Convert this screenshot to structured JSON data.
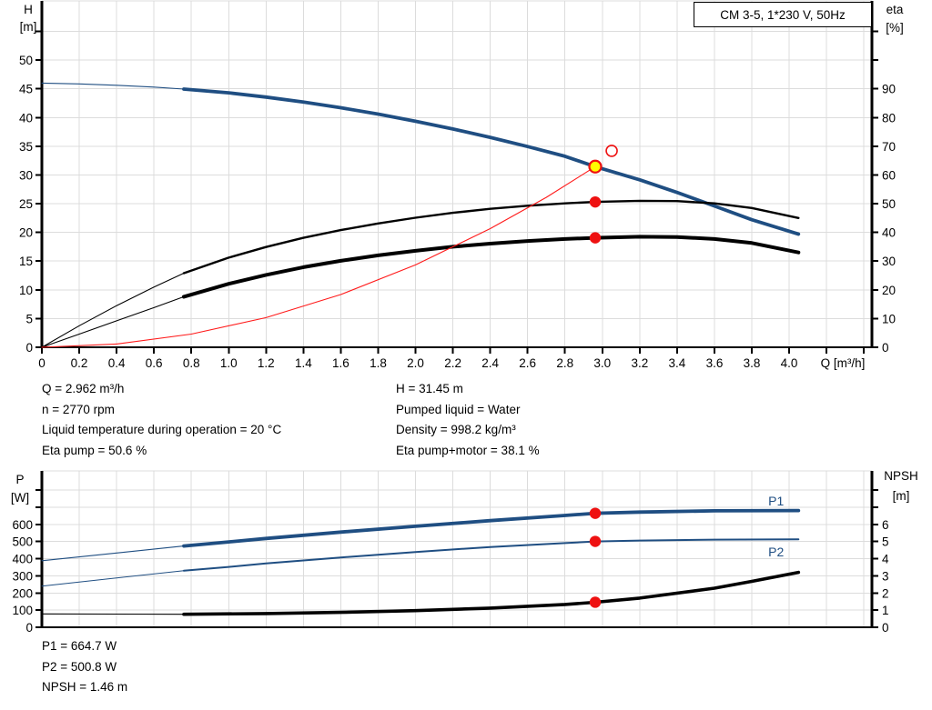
{
  "colors": {
    "curve_blue": "#1f4e82",
    "curve_black": "#000000",
    "curve_red": "#ff1a1a",
    "marker_red": "#ee1111",
    "marker_yellow": "#ffff00",
    "grid": "#dcdcdc",
    "axis": "#000000",
    "label_blue": "#1f4e82",
    "text": "#000000"
  },
  "info_top": {
    "left_lines": [
      "Q = 2.962 m³/h",
      "n = 2770 rpm",
      "Liquid temperature during operation = 20 °C",
      "Eta pump = 50.6 %"
    ],
    "right_lines": [
      "H = 31.45 m",
      "Pumped liquid = Water",
      "Density = 998.2 kg/m³",
      "Eta pump+motor = 38.1 %"
    ]
  },
  "info_bottom": {
    "lines": [
      "P1 = 664.7 W",
      "P2 = 500.8 W",
      "NPSH = 1.46 m"
    ]
  },
  "chart_data": [
    {
      "type": "line",
      "title": "CM 3-5, 1*230 V, 50Hz",
      "x_axis": {
        "label": "Q [m³/h]",
        "min": 0,
        "max": 4.443,
        "tick_step": 0.2,
        "tick_max": 4.4,
        "label_max": 4.0,
        "grid": true
      },
      "left_axis": {
        "title": [
          "H",
          "[m]"
        ],
        "min": 0,
        "max": 60.3,
        "tick_step": 5,
        "tick_max": 55,
        "label_max": 50,
        "grid": true
      },
      "right_axis": {
        "title": [
          "eta",
          "[%]"
        ],
        "min": 0,
        "max": 120.6,
        "tick_step": 10,
        "tick_max": 110,
        "label_max": 90
      },
      "series": [
        {
          "name": "head-curve",
          "axis": "left",
          "color_key": "curve_blue",
          "thin_width": 1.1,
          "thick_width": 3.8,
          "thin_until": 0.76,
          "points": [
            [
              0,
              46.0
            ],
            [
              0.2,
              45.85
            ],
            [
              0.4,
              45.62
            ],
            [
              0.6,
              45.3
            ],
            [
              0.76,
              44.95
            ],
            [
              1.0,
              44.3
            ],
            [
              1.2,
              43.55
            ],
            [
              1.4,
              42.7
            ],
            [
              1.6,
              41.7
            ],
            [
              1.8,
              40.6
            ],
            [
              2.0,
              39.35
            ],
            [
              2.2,
              38.0
            ],
            [
              2.4,
              36.55
            ],
            [
              2.6,
              34.95
            ],
            [
              2.8,
              33.25
            ],
            [
              2.962,
              31.45
            ],
            [
              3.2,
              29.15
            ],
            [
              3.4,
              26.95
            ],
            [
              3.6,
              24.6
            ],
            [
              3.8,
              22.2
            ],
            [
              4.05,
              19.7
            ]
          ]
        },
        {
          "name": "eta-pump-curve",
          "axis": "right",
          "color_key": "curve_black",
          "thin_width": 1.1,
          "thick_width": 2.4,
          "thin_until": 0.76,
          "points": [
            [
              0,
              0
            ],
            [
              0.2,
              7.5
            ],
            [
              0.4,
              14.5
            ],
            [
              0.6,
              21.0
            ],
            [
              0.76,
              25.8
            ],
            [
              1.0,
              31.2
            ],
            [
              1.2,
              34.9
            ],
            [
              1.4,
              38.1
            ],
            [
              1.6,
              40.8
            ],
            [
              1.8,
              43.1
            ],
            [
              2.0,
              45.1
            ],
            [
              2.2,
              46.8
            ],
            [
              2.4,
              48.2
            ],
            [
              2.6,
              49.3
            ],
            [
              2.8,
              50.1
            ],
            [
              2.962,
              50.6
            ],
            [
              3.2,
              51.0
            ],
            [
              3.4,
              50.9
            ],
            [
              3.6,
              50.1
            ],
            [
              3.8,
              48.5
            ],
            [
              4.05,
              45.0
            ]
          ]
        },
        {
          "name": "eta-pump-motor-curve",
          "axis": "right",
          "color_key": "curve_black",
          "thin_width": 1.1,
          "thick_width": 4.0,
          "thin_until": 0.76,
          "points": [
            [
              0,
              0
            ],
            [
              0.2,
              4.6
            ],
            [
              0.4,
              9.2
            ],
            [
              0.6,
              13.8
            ],
            [
              0.76,
              17.6
            ],
            [
              1.0,
              22.1
            ],
            [
              1.2,
              25.2
            ],
            [
              1.4,
              27.9
            ],
            [
              1.6,
              30.1
            ],
            [
              1.8,
              32.0
            ],
            [
              2.0,
              33.6
            ],
            [
              2.2,
              35.0
            ],
            [
              2.4,
              36.1
            ],
            [
              2.6,
              37.0
            ],
            [
              2.8,
              37.7
            ],
            [
              2.962,
              38.1
            ],
            [
              3.2,
              38.5
            ],
            [
              3.4,
              38.4
            ],
            [
              3.6,
              37.7
            ],
            [
              3.8,
              36.3
            ],
            [
              4.05,
              33.0
            ]
          ]
        },
        {
          "name": "system-curve",
          "axis": "left",
          "color_key": "curve_red",
          "thin_width": 1.1,
          "thick_width": 1.1,
          "thin_until": 99,
          "points": [
            [
              0,
              0
            ],
            [
              0.4,
              0.57
            ],
            [
              0.8,
              2.29
            ],
            [
              1.2,
              5.16
            ],
            [
              1.6,
              9.18
            ],
            [
              2.0,
              14.34
            ],
            [
              2.4,
              20.65
            ],
            [
              2.7,
              26.1
            ],
            [
              2.962,
              31.45
            ]
          ]
        }
      ],
      "markers": [
        {
          "name": "requested-duty-point",
          "axis": "left",
          "x": 3.05,
          "y": 34.2,
          "style": "open"
        },
        {
          "name": "eta-pump-point",
          "axis": "right",
          "x": 2.962,
          "y": 50.6,
          "style": "dot"
        },
        {
          "name": "eta-pump-motor-point",
          "axis": "right",
          "x": 2.962,
          "y": 38.1,
          "style": "dot"
        },
        {
          "name": "duty-point",
          "axis": "left",
          "x": 2.962,
          "y": 31.45,
          "style": "duty"
        }
      ],
      "labels": []
    },
    {
      "type": "line",
      "title": "",
      "x_axis": {
        "label": "",
        "min": 0,
        "max": 4.443,
        "tick_step": 0.2,
        "tick_max": null,
        "label_max": null,
        "grid": true
      },
      "left_axis": {
        "title": [
          "P",
          "[W]"
        ],
        "min": 0,
        "max": 912,
        "tick_step": 100,
        "tick_max": 800,
        "label_max": 600,
        "grid": true
      },
      "right_axis": {
        "title": [
          "NPSH",
          "[m]"
        ],
        "min": 0,
        "max": 9.12,
        "tick_step": 1,
        "tick_max": 8,
        "label_max": 6
      },
      "series": [
        {
          "name": "p1-curve",
          "axis": "left",
          "color_key": "curve_blue",
          "thin_width": 1.1,
          "thick_width": 3.8,
          "thin_until": 0.76,
          "points": [
            [
              0,
              388
            ],
            [
              0.4,
              433
            ],
            [
              0.76,
              474
            ],
            [
              1.0,
              498
            ],
            [
              1.2,
              518
            ],
            [
              1.6,
              555
            ],
            [
              2.0,
              589
            ],
            [
              2.4,
              622
            ],
            [
              2.8,
              652
            ],
            [
              2.962,
              664.7
            ],
            [
              3.2,
              672
            ],
            [
              3.6,
              679
            ],
            [
              4.05,
              681
            ]
          ]
        },
        {
          "name": "p2-curve",
          "axis": "left",
          "color_key": "curve_blue",
          "thin_width": 1.0,
          "thick_width": 2.0,
          "thin_until": 0.76,
          "points": [
            [
              0,
              240
            ],
            [
              0.4,
              288
            ],
            [
              0.76,
              330
            ],
            [
              1.0,
              352
            ],
            [
              1.2,
              372
            ],
            [
              1.6,
              407
            ],
            [
              2.0,
              439
            ],
            [
              2.4,
              468
            ],
            [
              2.8,
              491
            ],
            [
              2.962,
              500.8
            ],
            [
              3.2,
              506
            ],
            [
              3.6,
              511
            ],
            [
              4.05,
              513
            ]
          ]
        },
        {
          "name": "npsh-curve",
          "axis": "right",
          "color_key": "curve_black",
          "thin_width": 1.1,
          "thick_width": 3.6,
          "thin_until": 0.76,
          "points": [
            [
              0,
              0.78
            ],
            [
              0.4,
              0.77
            ],
            [
              0.76,
              0.76
            ],
            [
              1.2,
              0.8
            ],
            [
              1.6,
              0.87
            ],
            [
              2.0,
              0.97
            ],
            [
              2.4,
              1.12
            ],
            [
              2.8,
              1.33
            ],
            [
              2.962,
              1.46
            ],
            [
              3.2,
              1.7
            ],
            [
              3.6,
              2.28
            ],
            [
              3.8,
              2.68
            ],
            [
              4.05,
              3.2
            ]
          ]
        }
      ],
      "markers": [
        {
          "name": "p1-point",
          "axis": "left",
          "x": 2.962,
          "y": 664.7,
          "style": "dot"
        },
        {
          "name": "p2-point",
          "axis": "left",
          "x": 2.962,
          "y": 500.8,
          "style": "dot"
        },
        {
          "name": "npsh-point",
          "axis": "right",
          "x": 2.962,
          "y": 1.46,
          "style": "dot"
        }
      ],
      "labels": [
        {
          "text": "P1",
          "axis": "left",
          "x": 3.93,
          "y": 710
        },
        {
          "text": "P2",
          "axis": "left",
          "x": 3.93,
          "y": 413
        }
      ]
    }
  ]
}
